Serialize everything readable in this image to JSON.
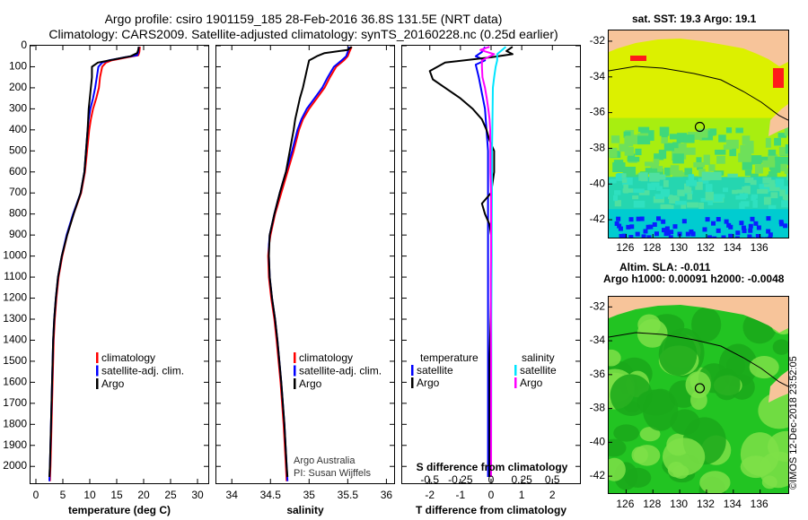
{
  "header": {
    "title_line1": "Argo profile: csiro 1901159_185 28-Feb-2016 36.8S 131.5E (NRT data)",
    "title_line2": "Climatology: CARS2009. Satellite-adjusted climatology: synTS_20160228.nc (0.25d earlier)"
  },
  "colors": {
    "climatology": "#ff0000",
    "satellite": "#0000ff",
    "argo": "#000000",
    "satellite_salinity": "#00e5ff",
    "argo_salinity": "#ff00ff",
    "land": "#f7c49a"
  },
  "chart_data": [
    {
      "type": "line",
      "id": "temperature",
      "xlabel": "temperature (deg C)",
      "xlim": [
        -1,
        32
      ],
      "xticks": [
        0,
        5,
        10,
        15,
        20,
        25,
        30
      ],
      "ylim": [
        0,
        2080
      ],
      "yticks": [
        0,
        100,
        200,
        300,
        400,
        500,
        600,
        700,
        800,
        900,
        1000,
        1100,
        1200,
        1300,
        1400,
        1500,
        1600,
        1700,
        1800,
        1900,
        2000
      ],
      "legend": [
        {
          "label": "climatology",
          "color": "#ff0000"
        },
        {
          "label": "satellite-adj. clim.",
          "color": "#0000ff"
        },
        {
          "label": "Argo",
          "color": "#000000"
        }
      ],
      "series": [
        {
          "name": "climatology",
          "color": "#ff0000",
          "depth": [
            5,
            30,
            45,
            55,
            70,
            80,
            100,
            150,
            200,
            250,
            300,
            350,
            400,
            500,
            600,
            700,
            800,
            900,
            1000,
            1100,
            1200,
            1300,
            1400,
            1600,
            1800,
            2000,
            2070
          ],
          "values": [
            19.3,
            19.2,
            19.0,
            17.0,
            14.0,
            13.0,
            12.3,
            11.9,
            11.7,
            11.2,
            10.6,
            10.2,
            9.9,
            9.5,
            9.1,
            8.4,
            7.0,
            5.8,
            4.9,
            4.2,
            3.8,
            3.5,
            3.3,
            3.1,
            2.9,
            2.7,
            2.6
          ]
        },
        {
          "name": "satellite-adj. clim.",
          "color": "#0000ff",
          "depth": [
            5,
            30,
            45,
            55,
            70,
            80,
            100,
            150,
            200,
            250,
            300,
            350,
            400,
            500,
            600,
            700,
            800,
            900,
            1000,
            1100,
            1200,
            1300,
            1400,
            1600,
            1800,
            2000,
            2070
          ],
          "values": [
            19.1,
            19.0,
            18.8,
            16.5,
            13.5,
            12.3,
            11.6,
            11.3,
            11.0,
            10.6,
            10.1,
            9.8,
            9.6,
            9.3,
            9.0,
            8.3,
            6.9,
            5.7,
            4.8,
            4.1,
            3.7,
            3.4,
            3.2,
            3.0,
            2.8,
            2.6,
            2.5
          ]
        },
        {
          "name": "Argo",
          "color": "#000000",
          "depth": [
            5,
            20,
            35,
            50,
            65,
            80,
            100,
            150,
            200,
            250,
            300,
            350,
            400,
            500,
            600,
            700,
            800,
            900,
            1000,
            1100,
            1200,
            1300,
            1400,
            1600,
            1800,
            2000,
            2050
          ],
          "values": [
            19.1,
            19.0,
            18.8,
            17.6,
            14.5,
            11.5,
            10.4,
            10.4,
            10.2,
            10.0,
            9.8,
            9.7,
            9.6,
            9.3,
            9.0,
            8.3,
            7.0,
            5.8,
            4.8,
            4.1,
            3.7,
            3.4,
            3.2,
            3.0,
            2.8,
            2.6,
            2.5
          ]
        }
      ]
    },
    {
      "type": "line",
      "id": "salinity",
      "xlabel": "salinity",
      "xlim": [
        33.8,
        36.1
      ],
      "xticks": [
        34,
        34.5,
        35,
        35.5,
        36
      ],
      "ylim": [
        0,
        2080
      ],
      "legend": [
        {
          "label": "climatology",
          "color": "#ff0000"
        },
        {
          "label": "satellite-adj. clim.",
          "color": "#0000ff"
        },
        {
          "label": "Argo",
          "color": "#000000"
        }
      ],
      "series": [
        {
          "name": "climatology",
          "color": "#ff0000",
          "depth": [
            5,
            30,
            50,
            70,
            100,
            150,
            200,
            250,
            300,
            350,
            400,
            500,
            600,
            700,
            800,
            900,
            950,
            1000,
            1100,
            1200,
            1300,
            1400,
            1600,
            1800,
            2000,
            2070
          ],
          "values": [
            35.55,
            35.52,
            35.5,
            35.45,
            35.35,
            35.27,
            35.2,
            35.1,
            35.0,
            34.92,
            34.87,
            34.8,
            34.72,
            34.64,
            34.56,
            34.5,
            34.48,
            34.47,
            34.48,
            34.51,
            34.55,
            34.58,
            34.63,
            34.67,
            34.7,
            34.71
          ]
        },
        {
          "name": "satellite-adj. clim.",
          "color": "#0000ff",
          "depth": [
            5,
            30,
            50,
            70,
            100,
            150,
            200,
            250,
            300,
            350,
            400,
            500,
            600,
            700,
            800,
            900,
            950,
            1000,
            1100,
            1200,
            1300,
            1400,
            1600,
            1800,
            2000,
            2070
          ],
          "values": [
            35.52,
            35.5,
            35.48,
            35.42,
            35.32,
            35.24,
            35.17,
            35.07,
            34.97,
            34.9,
            34.85,
            34.78,
            34.7,
            34.62,
            34.55,
            34.49,
            34.48,
            34.48,
            34.49,
            34.52,
            34.56,
            34.59,
            34.64,
            34.68,
            34.71,
            34.72
          ]
        },
        {
          "name": "Argo",
          "color": "#000000",
          "depth": [
            5,
            20,
            35,
            50,
            60,
            70,
            100,
            150,
            200,
            250,
            300,
            350,
            400,
            500,
            600,
            700,
            800,
            900,
            1000,
            1100,
            1200,
            1300,
            1400,
            1600,
            1800,
            2000,
            2050
          ],
          "values": [
            35.55,
            35.5,
            35.2,
            35.1,
            35.05,
            35.0,
            34.98,
            34.95,
            34.92,
            34.88,
            34.85,
            34.82,
            34.8,
            34.75,
            34.7,
            34.62,
            34.55,
            34.49,
            34.48,
            34.49,
            34.52,
            34.56,
            34.59,
            34.64,
            34.68,
            34.71,
            34.72
          ]
        }
      ],
      "annotations": [
        "Argo Australia",
        "PI: Susan Wijffels"
      ]
    },
    {
      "type": "line",
      "id": "difference",
      "xlabel": "T difference from climatology",
      "top_xlabel": "S difference from climatology",
      "xlim": [
        -2.9,
        2.9
      ],
      "xticks": [
        -2,
        -1,
        0,
        1,
        2
      ],
      "top_xticks": [
        "-0.5",
        "-0.25",
        "0",
        "0.25",
        "0.5"
      ],
      "ylim": [
        0,
        2080
      ],
      "legend_temperature_title": "temperature",
      "legend_salinity_title": "salinity",
      "legend": [
        {
          "label": "satellite",
          "color": "#0000ff",
          "group": "temperature"
        },
        {
          "label": "Argo",
          "color": "#000000",
          "group": "temperature"
        },
        {
          "label": "satellite",
          "color": "#00e5ff",
          "group": "salinity"
        },
        {
          "label": "Argo",
          "color": "#ff00ff",
          "group": "salinity"
        }
      ],
      "series": [
        {
          "name": "T satellite",
          "color": "#0000ff",
          "depth": [
            5,
            30,
            50,
            70,
            90,
            150,
            300,
            500,
            700,
            800,
            900,
            1000,
            1200,
            1500,
            2000,
            2050
          ],
          "values": [
            -0.2,
            -0.3,
            -0.5,
            -0.2,
            -0.5,
            -0.4,
            -0.2,
            -0.1,
            -0.1,
            -0.1,
            -0.1,
            -0.1,
            -0.1,
            -0.1,
            -0.1,
            -0.1
          ]
        },
        {
          "name": "T Argo",
          "color": "#000000",
          "depth": [
            5,
            25,
            40,
            55,
            80,
            120,
            160,
            200,
            250,
            300,
            350,
            400,
            450,
            500,
            600,
            700,
            750,
            800,
            850,
            900,
            950,
            1000,
            1200,
            1500,
            1800,
            2000,
            2050
          ],
          "values": [
            0.7,
            0.5,
            0.7,
            0.0,
            -1.5,
            -2.0,
            -1.9,
            -1.5,
            -1.0,
            -0.6,
            -0.3,
            -0.15,
            -0.05,
            0.1,
            0.1,
            0.0,
            -0.3,
            -0.2,
            -0.05,
            0.0,
            0.0,
            0.0,
            0.0,
            -0.05,
            -0.05,
            -0.05,
            -0.05
          ]
        },
        {
          "name": "S satellite",
          "color": "#00e5ff",
          "depth": [
            5,
            40,
            70,
            100,
            150,
            200,
            300,
            400,
            500,
            700,
            900,
            1000,
            1300,
            1500,
            2000,
            2050
          ],
          "values": [
            0.48,
            0.2,
            0.2,
            0.15,
            0.1,
            0.06,
            0.05,
            0.04,
            0.03,
            0.03,
            0.02,
            0.02,
            0.01,
            0.01,
            0.0,
            0.0
          ]
        },
        {
          "name": "S Argo",
          "color": "#ff00ff",
          "depth": [
            5,
            20,
            40,
            70,
            100,
            150,
            200,
            250,
            300,
            350,
            400,
            500,
            600,
            700,
            800,
            900,
            1000,
            1100,
            1200,
            1500,
            1800,
            2000,
            2050
          ],
          "values": [
            -0.05,
            -0.35,
            0.1,
            -0.3,
            -0.3,
            -0.28,
            -0.2,
            -0.14,
            -0.09,
            -0.05,
            -0.03,
            -0.02,
            -0.02,
            0.0,
            0.0,
            0.0,
            0.0,
            -0.01,
            -0.01,
            0.0,
            0.0,
            0.0,
            0.0
          ]
        }
      ]
    }
  ],
  "maps": {
    "sst": {
      "title": "sat. SST: 19.3 Argo: 19.1",
      "xticks": [
        "126",
        "128",
        "130",
        "132",
        "134",
        "136"
      ],
      "yticks": [
        "-32",
        "-34",
        "-36",
        "-38",
        "-40",
        "-42"
      ]
    },
    "sla": {
      "title_line1": "Altim. SLA: -0.011",
      "title_line2": "Argo h1000: 0.00091 h2000: -0.0048",
      "xticks": [
        "126",
        "128",
        "130",
        "132",
        "134",
        "136"
      ],
      "yticks": [
        "-32",
        "-34",
        "-36",
        "-38",
        "-40",
        "-42"
      ]
    }
  },
  "credit": {
    "line1": "Argo Australia",
    "line2": "PI: Susan Wijffels",
    "stamp": "©IMOS 12-Dec-2018 23:52:05"
  }
}
